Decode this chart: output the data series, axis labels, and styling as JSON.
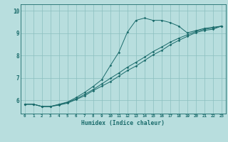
{
  "title": "",
  "xlabel": "Humidex (Indice chaleur)",
  "bg_color": "#b8dede",
  "line_color": "#1a6b6b",
  "grid_color": "#8bbfbf",
  "xlim": [
    -0.5,
    23.5
  ],
  "ylim": [
    5.4,
    10.3
  ],
  "xticks": [
    0,
    1,
    2,
    3,
    4,
    5,
    6,
    7,
    8,
    9,
    10,
    11,
    12,
    13,
    14,
    15,
    16,
    17,
    18,
    19,
    20,
    21,
    22,
    23
  ],
  "yticks": [
    6,
    7,
    8,
    9,
    10
  ],
  "line1_x": [
    0,
    1,
    2,
    3,
    4,
    5,
    6,
    7,
    8,
    9,
    10,
    11,
    12,
    13,
    14,
    15,
    16,
    17,
    18,
    19,
    20,
    21,
    22,
    23
  ],
  "line1_y": [
    5.82,
    5.82,
    5.72,
    5.72,
    5.82,
    5.92,
    6.12,
    6.35,
    6.62,
    6.92,
    7.55,
    8.15,
    9.05,
    9.58,
    9.68,
    9.58,
    9.58,
    9.48,
    9.32,
    9.02,
    9.12,
    9.22,
    9.27,
    9.32
  ],
  "line2_x": [
    0,
    1,
    2,
    3,
    4,
    5,
    6,
    7,
    8,
    9,
    10,
    11,
    12,
    13,
    14,
    15,
    16,
    17,
    18,
    19,
    20,
    21,
    22,
    23
  ],
  "line2_y": [
    5.82,
    5.82,
    5.72,
    5.72,
    5.8,
    5.9,
    6.06,
    6.26,
    6.48,
    6.73,
    6.98,
    7.22,
    7.48,
    7.7,
    7.93,
    8.18,
    8.38,
    8.6,
    8.78,
    8.93,
    9.08,
    9.18,
    9.23,
    9.32
  ],
  "line3_x": [
    0,
    1,
    2,
    3,
    4,
    5,
    6,
    7,
    8,
    9,
    10,
    11,
    12,
    13,
    14,
    15,
    16,
    17,
    18,
    19,
    20,
    21,
    22,
    23
  ],
  "line3_y": [
    5.82,
    5.82,
    5.72,
    5.72,
    5.78,
    5.87,
    6.03,
    6.2,
    6.43,
    6.63,
    6.83,
    7.08,
    7.33,
    7.53,
    7.78,
    8.03,
    8.23,
    8.48,
    8.68,
    8.86,
    9.03,
    9.13,
    9.18,
    9.32
  ]
}
